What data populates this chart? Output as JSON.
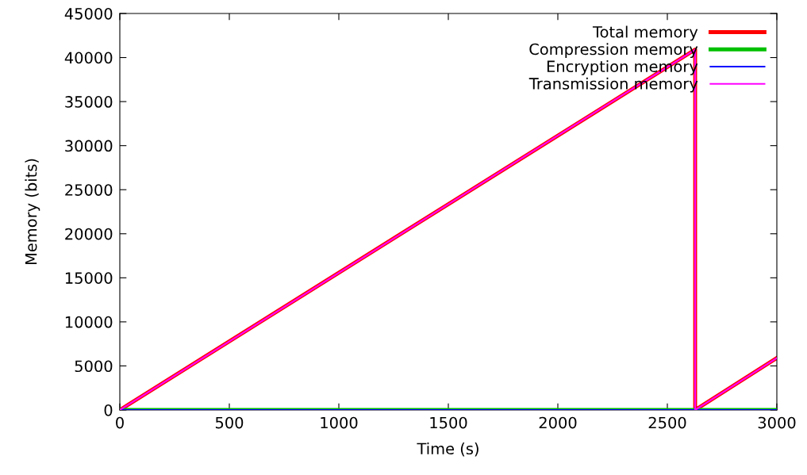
{
  "chart_data": {
    "type": "line",
    "xlabel": "Time (s)",
    "ylabel": "Memory (bits)",
    "xlim": [
      0,
      3000
    ],
    "xticks": [
      0,
      500,
      1000,
      1500,
      2000,
      2500,
      3000
    ],
    "ylim": [
      0,
      45000
    ],
    "yticks": [
      0,
      5000,
      10000,
      15000,
      20000,
      25000,
      30000,
      35000,
      40000,
      45000
    ],
    "grid": false,
    "legend": "top right",
    "marker": "none",
    "line_style": "solid",
    "series": [
      {
        "name": "Total memory",
        "color": "#ff0000",
        "x": [
          0,
          2627,
          2627,
          3000
        ],
        "values": [
          0,
          40900,
          0,
          5900
        ]
      },
      {
        "name": "Compression memory",
        "color": "#00c000",
        "x": [
          0,
          3000
        ],
        "values": [
          0,
          0
        ]
      },
      {
        "name": "Encryption memory",
        "color": "#0000ff",
        "x": [
          0,
          3000
        ],
        "values": [
          0,
          0
        ]
      },
      {
        "name": "Transmission memory",
        "color": "#ff00ff",
        "x": [
          0,
          2627,
          2627,
          3000
        ],
        "values": [
          0,
          40900,
          0,
          5900
        ]
      }
    ]
  }
}
